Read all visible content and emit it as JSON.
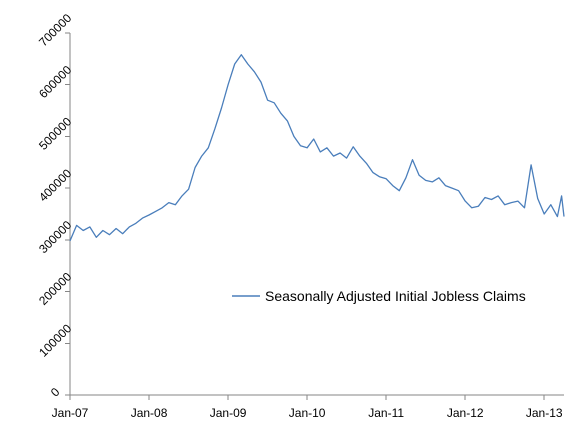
{
  "chart_data": {
    "type": "line",
    "title": "",
    "xlabel": "",
    "ylabel": "",
    "x_tick_labels": [
      "Jan-07",
      "Jan-08",
      "Jan-09",
      "Jan-10",
      "Jan-11",
      "Jan-12",
      "Jan-13"
    ],
    "y_tick_labels": [
      "0",
      "100000",
      "200000",
      "300000",
      "400000",
      "500000",
      "600000",
      "700000"
    ],
    "y_ticks": [
      0,
      100000,
      200000,
      300000,
      400000,
      500000,
      600000,
      700000
    ],
    "ylim": [
      0,
      700000
    ],
    "xlim": [
      "2007-01",
      "2013-04"
    ],
    "grid": false,
    "legend_position": "center-right",
    "colors": {
      "line": "#4A7EBB",
      "axis": "#868686"
    },
    "series": [
      {
        "name": "Seasonally Adjusted Initial Jobless Claims",
        "points": [
          [
            "2007-01",
            298000
          ],
          [
            "2007-02",
            328000
          ],
          [
            "2007-03",
            318000
          ],
          [
            "2007-04",
            325000
          ],
          [
            "2007-05",
            305000
          ],
          [
            "2007-06",
            318000
          ],
          [
            "2007-07",
            310000
          ],
          [
            "2007-08",
            322000
          ],
          [
            "2007-09",
            312000
          ],
          [
            "2007-10",
            325000
          ],
          [
            "2007-11",
            332000
          ],
          [
            "2007-12",
            342000
          ],
          [
            "2008-01",
            348000
          ],
          [
            "2008-02",
            355000
          ],
          [
            "2008-03",
            362000
          ],
          [
            "2008-04",
            372000
          ],
          [
            "2008-05",
            368000
          ],
          [
            "2008-06",
            385000
          ],
          [
            "2008-07",
            398000
          ],
          [
            "2008-08",
            440000
          ],
          [
            "2008-09",
            462000
          ],
          [
            "2008-10",
            478000
          ],
          [
            "2008-11",
            515000
          ],
          [
            "2008-12",
            555000
          ],
          [
            "2009-01",
            600000
          ],
          [
            "2009-02",
            640000
          ],
          [
            "2009-03",
            658000
          ],
          [
            "2009-04",
            640000
          ],
          [
            "2009-05",
            625000
          ],
          [
            "2009-06",
            605000
          ],
          [
            "2009-07",
            570000
          ],
          [
            "2009-08",
            565000
          ],
          [
            "2009-09",
            545000
          ],
          [
            "2009-10",
            530000
          ],
          [
            "2009-11",
            500000
          ],
          [
            "2009-12",
            482000
          ],
          [
            "2010-01",
            478000
          ],
          [
            "2010-02",
            495000
          ],
          [
            "2010-03",
            470000
          ],
          [
            "2010-04",
            478000
          ],
          [
            "2010-05",
            462000
          ],
          [
            "2010-06",
            468000
          ],
          [
            "2010-07",
            458000
          ],
          [
            "2010-08",
            480000
          ],
          [
            "2010-09",
            462000
          ],
          [
            "2010-10",
            448000
          ],
          [
            "2010-11",
            430000
          ],
          [
            "2010-12",
            422000
          ],
          [
            "2011-01",
            418000
          ],
          [
            "2011-02",
            405000
          ],
          [
            "2011-03",
            395000
          ],
          [
            "2011-04",
            420000
          ],
          [
            "2011-05",
            455000
          ],
          [
            "2011-06",
            425000
          ],
          [
            "2011-07",
            415000
          ],
          [
            "2011-08",
            412000
          ],
          [
            "2011-09",
            420000
          ],
          [
            "2011-10",
            405000
          ],
          [
            "2011-11",
            400000
          ],
          [
            "2011-12",
            395000
          ],
          [
            "2012-01",
            375000
          ],
          [
            "2012-02",
            362000
          ],
          [
            "2012-03",
            365000
          ],
          [
            "2012-04",
            382000
          ],
          [
            "2012-05",
            378000
          ],
          [
            "2012-06",
            385000
          ],
          [
            "2012-07",
            368000
          ],
          [
            "2012-08",
            372000
          ],
          [
            "2012-09",
            375000
          ],
          [
            "2012-10",
            362000
          ],
          [
            "2012-11",
            445000
          ],
          [
            "2012-12",
            380000
          ],
          [
            "2013-01",
            350000
          ],
          [
            "2013-02",
            368000
          ],
          [
            "2013-03",
            345000
          ],
          [
            "2013-03-20",
            385000
          ],
          [
            "2013-04",
            345000
          ]
        ]
      }
    ]
  }
}
